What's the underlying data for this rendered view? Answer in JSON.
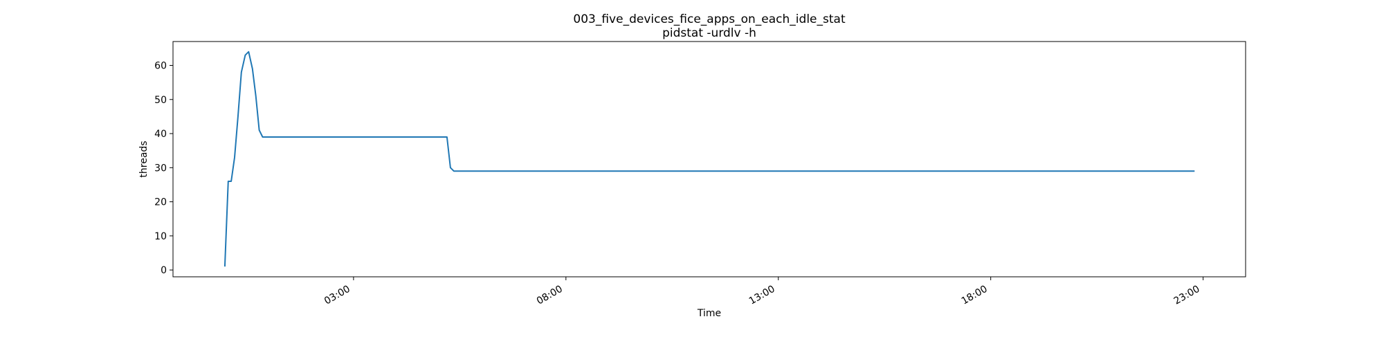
{
  "chart_data": {
    "type": "line",
    "title": "003_five_devices_fice_apps_on_each_idle_stat",
    "subtitle": "pidstat -urdlv -h",
    "xlabel": "Time",
    "ylabel": "threads",
    "x_tick_labels": [
      "03:00",
      "08:00",
      "13:00",
      "18:00",
      "23:00"
    ],
    "x_tick_hours": [
      3,
      8,
      13,
      18,
      23
    ],
    "xlim_hours": [
      -1.25,
      24.0
    ],
    "y_ticks": [
      0,
      10,
      20,
      30,
      40,
      50,
      60
    ],
    "ylim": [
      -2,
      67
    ],
    "grid": false,
    "series": [
      {
        "color": "#1f77b4",
        "points": [
          [
            -0.03,
            1
          ],
          [
            0.05,
            26
          ],
          [
            0.12,
            26
          ],
          [
            0.2,
            33
          ],
          [
            0.28,
            45
          ],
          [
            0.36,
            58
          ],
          [
            0.45,
            63
          ],
          [
            0.53,
            64
          ],
          [
            0.62,
            59
          ],
          [
            0.7,
            51
          ],
          [
            0.78,
            41
          ],
          [
            0.86,
            39
          ],
          [
            1.0,
            39
          ],
          [
            5.0,
            39
          ],
          [
            5.2,
            39
          ],
          [
            5.28,
            30
          ],
          [
            5.36,
            29
          ],
          [
            22.8,
            29
          ]
        ]
      }
    ]
  }
}
